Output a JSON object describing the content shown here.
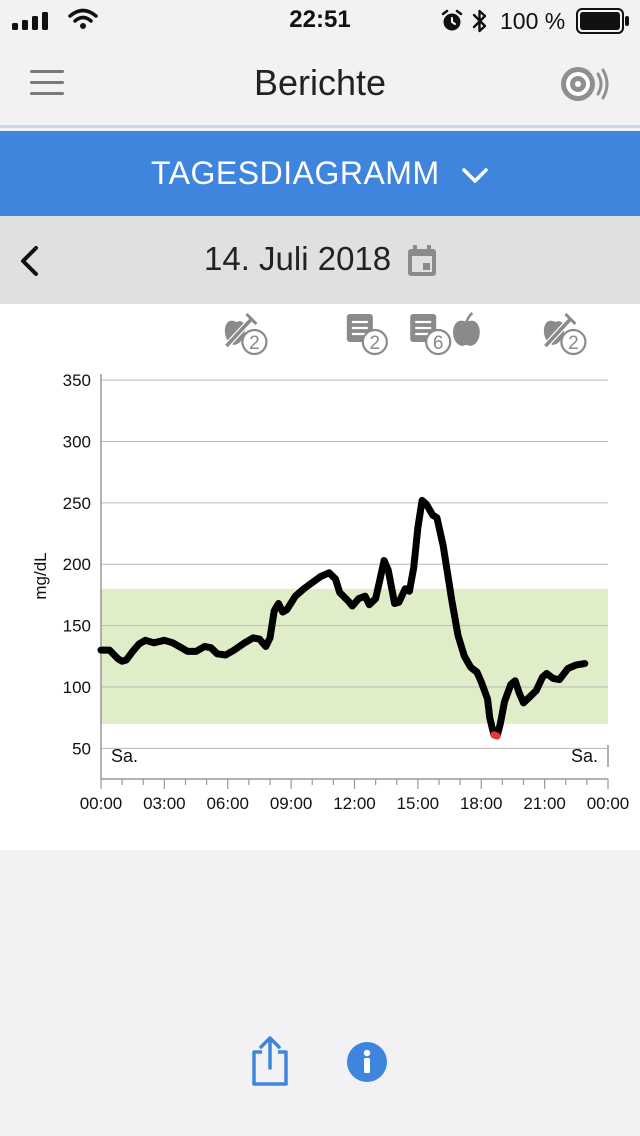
{
  "status_bar": {
    "time": "22:51",
    "battery_percent": "100 %",
    "icons": [
      "signal-icon",
      "wifi-icon",
      "alarm-icon",
      "bluetooth-icon",
      "battery-icon"
    ]
  },
  "header": {
    "title": "Berichte",
    "menu_icon": "hamburger-menu-icon",
    "right_icon": "sensor-scan-icon"
  },
  "report_selector": {
    "label": "TAGESDIAGRAMM",
    "icon": "chevron-down-icon"
  },
  "date_nav": {
    "date": "14. Juli 2018",
    "back_icon": "chevron-left-icon",
    "calendar_icon": "calendar-icon"
  },
  "event_markers": [
    {
      "type": "insulin-food-icon",
      "count": "2",
      "time_h": 6.6
    },
    {
      "type": "note-icon",
      "count": "2",
      "time_h": 12.3
    },
    {
      "type": "note-icon",
      "count": "6",
      "time_h": 15.3
    },
    {
      "type": "apple-icon",
      "count": "",
      "time_h": 17.3
    },
    {
      "type": "insulin-food-icon",
      "count": "2",
      "time_h": 21.7
    }
  ],
  "chart_data": {
    "type": "line",
    "ylabel": "mg/dL",
    "xlabel": "",
    "ylim": [
      25,
      355
    ],
    "xlim": [
      0,
      24
    ],
    "y_ticks": [
      50,
      100,
      150,
      200,
      250,
      300,
      350
    ],
    "x_tick_labels": [
      "00:00",
      "03:00",
      "06:00",
      "09:00",
      "12:00",
      "15:00",
      "18:00",
      "21:00",
      "00:00"
    ],
    "day_labels": {
      "start": "Sa.",
      "end": "Sa."
    },
    "target_range": [
      70,
      180
    ],
    "target_range_color": "#dfedc8",
    "line_color": "#000000",
    "low_color": "#e53935",
    "low_threshold": 70,
    "grid": true,
    "series": [
      {
        "points": [
          [
            0.0,
            130
          ],
          [
            0.4,
            130
          ],
          [
            0.8,
            123
          ],
          [
            1.0,
            121
          ],
          [
            1.2,
            122
          ],
          [
            1.5,
            129
          ],
          [
            1.8,
            135
          ],
          [
            2.1,
            138
          ],
          [
            2.5,
            136
          ],
          [
            3.0,
            138
          ],
          [
            3.4,
            136
          ],
          [
            3.8,
            132
          ],
          [
            4.1,
            129
          ],
          [
            4.5,
            129
          ],
          [
            4.9,
            133
          ],
          [
            5.2,
            132
          ],
          [
            5.5,
            127
          ],
          [
            5.9,
            126
          ],
          [
            6.3,
            130
          ],
          [
            6.8,
            136
          ],
          [
            7.2,
            140
          ],
          [
            7.5,
            139
          ],
          [
            7.8,
            133
          ],
          [
            8.0,
            140
          ],
          [
            8.2,
            162
          ],
          [
            8.4,
            168
          ],
          [
            8.6,
            161
          ],
          [
            8.8,
            163
          ],
          [
            9.2,
            174
          ],
          [
            9.6,
            180
          ],
          [
            10.0,
            185
          ],
          [
            10.4,
            190
          ],
          [
            10.8,
            193
          ],
          [
            11.1,
            188
          ],
          [
            11.3,
            177
          ],
          [
            11.7,
            170
          ],
          [
            11.9,
            166
          ],
          [
            12.2,
            172
          ],
          [
            12.5,
            174
          ],
          [
            12.7,
            167
          ],
          [
            13.0,
            172
          ],
          [
            13.2,
            187
          ],
          [
            13.4,
            203
          ],
          [
            13.6,
            195
          ],
          [
            13.9,
            168
          ],
          [
            14.1,
            169
          ],
          [
            14.4,
            180
          ],
          [
            14.6,
            178
          ],
          [
            14.8,
            197
          ],
          [
            15.0,
            230
          ],
          [
            15.2,
            252
          ],
          [
            15.4,
            249
          ],
          [
            15.7,
            240
          ],
          [
            15.9,
            238
          ],
          [
            16.2,
            215
          ],
          [
            16.6,
            171
          ],
          [
            16.9,
            142
          ],
          [
            17.2,
            125
          ],
          [
            17.5,
            116
          ],
          [
            17.8,
            112
          ],
          [
            18.0,
            104
          ],
          [
            18.3,
            90
          ],
          [
            18.4,
            75
          ],
          [
            18.6,
            61
          ],
          [
            18.75,
            60
          ],
          [
            18.9,
            70
          ],
          [
            19.1,
            88
          ],
          [
            19.4,
            102
          ],
          [
            19.6,
            105
          ],
          [
            19.8,
            95
          ],
          [
            20.0,
            87
          ],
          [
            20.3,
            92
          ],
          [
            20.6,
            97
          ],
          [
            20.9,
            108
          ],
          [
            21.1,
            111
          ],
          [
            21.4,
            107
          ],
          [
            21.7,
            106
          ],
          [
            22.1,
            115
          ],
          [
            22.5,
            118
          ],
          [
            22.9,
            119
          ]
        ]
      }
    ]
  },
  "bottom_actions": {
    "share_icon": "share-icon",
    "info_icon": "info-icon"
  },
  "colors": {
    "accent": "#3f85dd",
    "icon_gray": "#8a8a8a",
    "background": "#f2f2f4"
  }
}
